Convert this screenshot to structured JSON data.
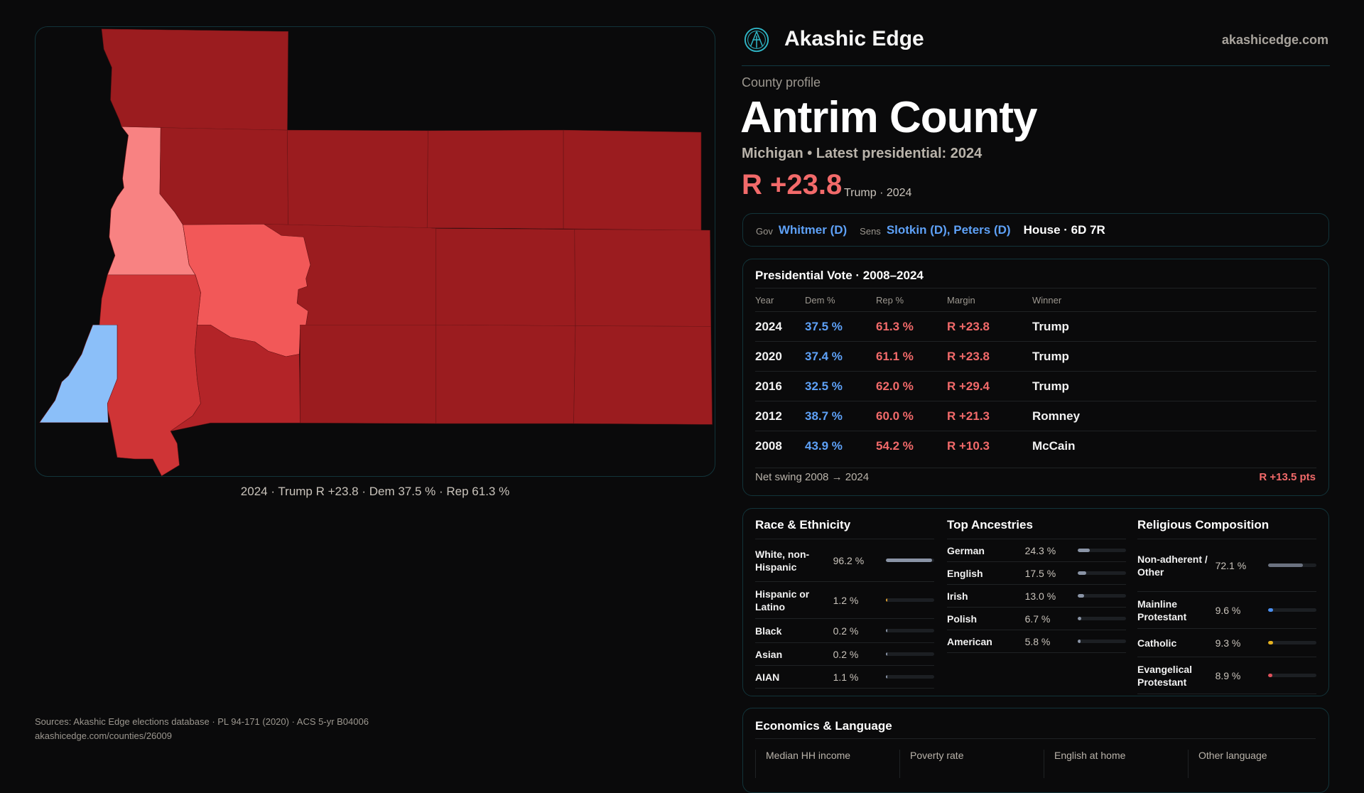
{
  "brand": {
    "name": "Akashic Edge",
    "domain": "akashicedge.com",
    "logo_icon": "akashic-edge-logo-icon"
  },
  "profile": {
    "kicker": "County profile",
    "county": "Antrim County",
    "subtitle": "Michigan • Latest presidential: 2024",
    "margin": "R +23.8",
    "margin_note": "Trump · 2024"
  },
  "officials": {
    "gov_label": "Gov",
    "gov": "Whitmer (D)",
    "sens_label": "Sens",
    "sens": "Slotkin (D), Peters (D)",
    "house": "House · 6D 7R"
  },
  "map": {
    "caption": "2024 · Trump R +23.8 · Dem 37.5 % · Rep 61.3 %",
    "colors": {
      "safe_r": "#9b1c1f",
      "likely_r": "#b32428",
      "lean_r": "#cf3436",
      "tilt_r": "#f25858",
      "light_r": "#f88282",
      "dem": "#8bbff9"
    }
  },
  "presidential": {
    "title": "Presidential Vote · 2008–2024",
    "headers": [
      "Year",
      "Dem %",
      "Rep %",
      "Margin",
      "Winner"
    ],
    "rows": [
      [
        "2024",
        "37.5 %",
        "61.3 %",
        "R +23.8",
        "Trump"
      ],
      [
        "2020",
        "37.4 %",
        "61.1 %",
        "R +23.8",
        "Trump"
      ],
      [
        "2016",
        "32.5 %",
        "62.0 %",
        "R +29.4",
        "Trump"
      ],
      [
        "2012",
        "38.7 %",
        "60.0 %",
        "R +21.3",
        "Romney"
      ],
      [
        "2008",
        "43.9 %",
        "54.2 %",
        "R +10.3",
        "McCain"
      ]
    ],
    "swing_label": "Net swing 2008 → 2024",
    "swing_value": "R +13.5 pts"
  },
  "race": {
    "title": "Race & Ethnicity",
    "rows": [
      {
        "name": "White, non-Hispanic",
        "pct": "96.2 %",
        "value": 96.2,
        "color": "#8a94a6"
      },
      {
        "name": "Hispanic or Latino",
        "pct": "1.2 %",
        "value": 1.2,
        "color": "#e0a030"
      },
      {
        "name": "Black",
        "pct": "0.2 %",
        "value": 0.2,
        "color": "#8a94a6"
      },
      {
        "name": "Asian",
        "pct": "0.2 %",
        "value": 0.2,
        "color": "#8a94a6"
      },
      {
        "name": "AIAN",
        "pct": "1.1 %",
        "value": 1.1,
        "color": "#8a94a6"
      }
    ]
  },
  "ancestry": {
    "title": "Top Ancestries",
    "rows": [
      {
        "name": "German",
        "pct": "24.3 %",
        "value": 24.3,
        "color": "#8a94a6"
      },
      {
        "name": "English",
        "pct": "17.5 %",
        "value": 17.5,
        "color": "#8a94a6"
      },
      {
        "name": "Irish",
        "pct": "13.0 %",
        "value": 13.0,
        "color": "#8a94a6"
      },
      {
        "name": "Polish",
        "pct": "6.7 %",
        "value": 6.7,
        "color": "#8a94a6"
      },
      {
        "name": "American",
        "pct": "5.8 %",
        "value": 5.8,
        "color": "#8a94a6"
      }
    ]
  },
  "religion": {
    "title": "Religious Composition",
    "rows": [
      {
        "name": "Non-adherent / Other",
        "pct": "72.1 %",
        "value": 72.1,
        "color": "#6b7280"
      },
      {
        "name": "Mainline Protestant",
        "pct": "9.6 %",
        "value": 9.6,
        "color": "#4a8ff0"
      },
      {
        "name": "Catholic",
        "pct": "9.3 %",
        "value": 9.3,
        "color": "#e5b21f"
      },
      {
        "name": "Evangelical Protestant",
        "pct": "8.9 %",
        "value": 8.9,
        "color": "#e0505a"
      }
    ]
  },
  "economics": {
    "title": "Economics & Language",
    "headers": [
      "Median HH income",
      "Poverty rate",
      "English at home",
      "Other language"
    ]
  },
  "sources": {
    "line1": "Sources: Akashic Edge elections database · PL 94-171 (2020) · ACS 5-yr B04006",
    "line2": "akashicedge.com/counties/26009"
  }
}
